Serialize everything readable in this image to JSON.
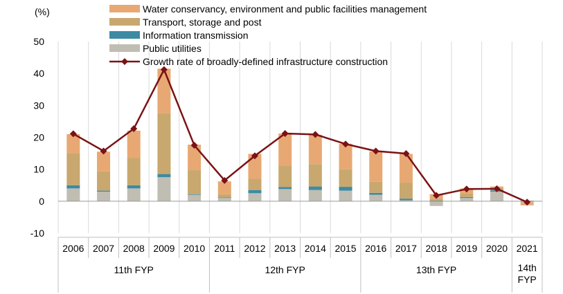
{
  "chart_data": {
    "type": "bar",
    "subtype": "stacked-bar-with-line",
    "unit_label": "(%)",
    "categories": [
      "2006",
      "2007",
      "2008",
      "2009",
      "2010",
      "2011",
      "2012",
      "2013",
      "2014",
      "2015",
      "2016",
      "2017",
      "2018",
      "2019",
      "2020",
      "2021"
    ],
    "ylim": [
      -10,
      50
    ],
    "yticks": [
      -10,
      0,
      10,
      20,
      30,
      40,
      50
    ],
    "groups": [
      {
        "label": "11th FYP",
        "start": 0,
        "end": 4
      },
      {
        "label": "12th FYP",
        "start": 5,
        "end": 9
      },
      {
        "label": "13th FYP",
        "start": 10,
        "end": 14
      },
      {
        "label": "14th FYP",
        "start": 15,
        "end": 15
      }
    ],
    "series": [
      {
        "name": "Public utilities",
        "type": "bar",
        "color": "#c0bdb3",
        "values": [
          4,
          3,
          4,
          7.5,
          2,
          1,
          2.5,
          3.8,
          3.5,
          3.3,
          2,
          0.3,
          -1.5,
          1,
          3,
          -0.5
        ]
      },
      {
        "name": "Information transmission",
        "type": "bar",
        "color": "#3d8aa3",
        "values": [
          1,
          0.3,
          1,
          1,
          0.2,
          0.2,
          1,
          0.6,
          1.1,
          1.2,
          0.6,
          0.5,
          0.2,
          0.3,
          0.4,
          0
        ]
      },
      {
        "name": "Transport, storage and post",
        "type": "bar",
        "color": "#c8a86e",
        "values": [
          10,
          6,
          8.5,
          19,
          7.5,
          1,
          3.5,
          6.8,
          7,
          5.5,
          3.5,
          5,
          0.5,
          1.2,
          0.7,
          0.2
        ]
      },
      {
        "name": "Water conservancy, environment and public facilities management",
        "type": "bar",
        "color": "#e8a873",
        "values": [
          6,
          6.2,
          8.6,
          14,
          8,
          4,
          7.8,
          10,
          9.2,
          8,
          9.5,
          9,
          1.5,
          1.5,
          0.5,
          -0.8
        ]
      },
      {
        "name": "Growth rate of broadly-defined infrastructure construction",
        "type": "line",
        "color": "#7b1215",
        "values": [
          21.1,
          15.7,
          22.7,
          41.2,
          17.5,
          6.5,
          14.2,
          21.2,
          20.9,
          17.9,
          15.7,
          14.9,
          1.8,
          3.8,
          3.9,
          -0.3
        ]
      }
    ]
  }
}
